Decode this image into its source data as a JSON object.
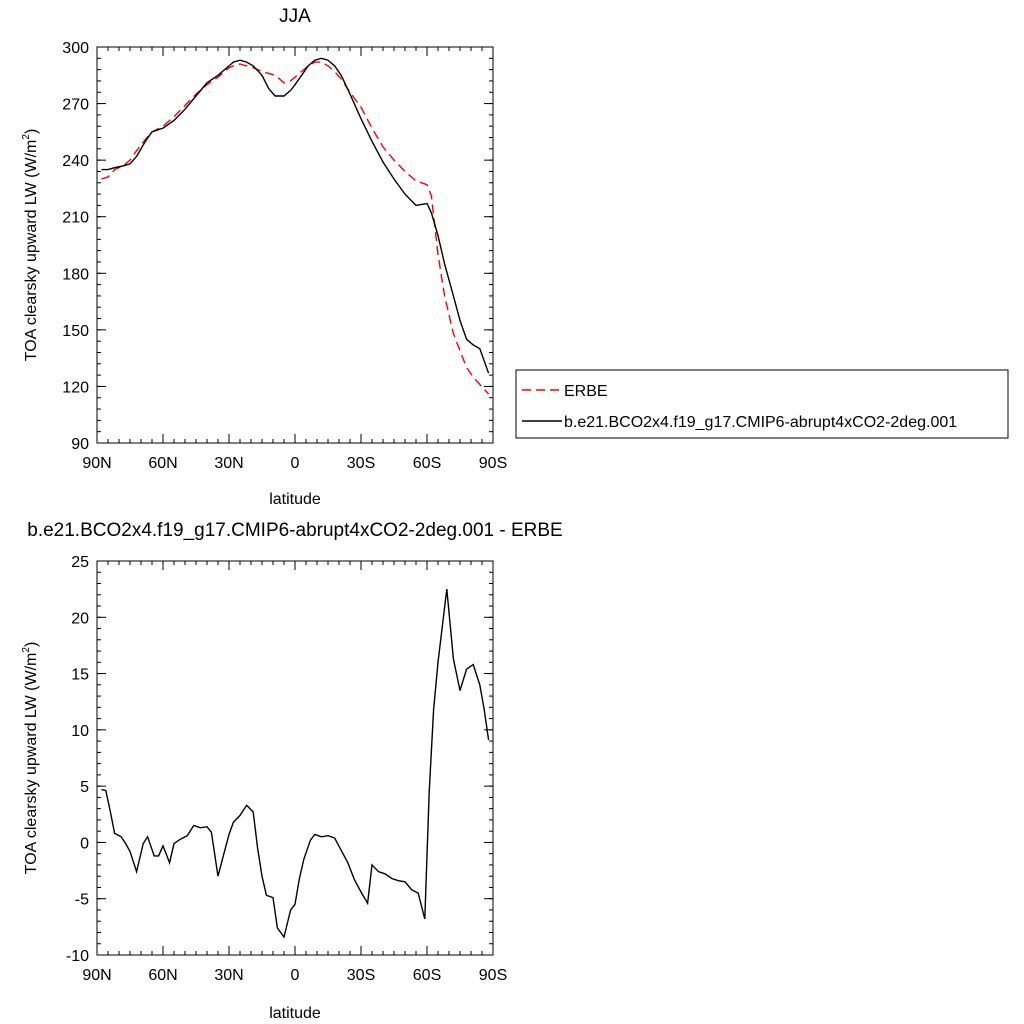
{
  "chart_data": [
    {
      "type": "line",
      "title": "JJA",
      "xlabel": "latitude",
      "ylabel": "TOA clearsky upward LW",
      "ylabel_unit": "(W/m",
      "ylabel_sup": "2",
      "ylabel_close": ")",
      "xlim": [
        90,
        -90
      ],
      "ylim": [
        90,
        300
      ],
      "xticks": [
        90,
        60,
        30,
        0,
        -30,
        -60,
        -90
      ],
      "xtick_labels": [
        "90N",
        "60N",
        "30N",
        "0",
        "30S",
        "60S",
        "90S"
      ],
      "yticks": [
        90,
        120,
        150,
        180,
        210,
        240,
        270,
        300
      ],
      "ytick_labels": [
        "90",
        "120",
        "150",
        "180",
        "210",
        "240",
        "270",
        "300"
      ],
      "legend_position": "right",
      "series": [
        {
          "name": "ERBE",
          "color": "#ff0000",
          "dash": "dashed",
          "x": [
            88,
            85,
            82,
            78,
            75,
            72,
            68,
            65,
            60,
            55,
            50,
            45,
            40,
            35,
            30,
            28,
            25,
            22,
            19,
            15,
            12,
            9,
            5,
            2,
            0,
            -3,
            -6,
            -9,
            -12,
            -15,
            -18,
            -21,
            -25,
            -30,
            -35,
            -40,
            -45,
            -50,
            -55,
            -60,
            -62,
            -65,
            -68,
            -72,
            -75,
            -78,
            -81,
            -84,
            -88
          ],
          "y": [
            230,
            231,
            235,
            237,
            240,
            245,
            251,
            255,
            258,
            263,
            269,
            275,
            280,
            284,
            289,
            290,
            291,
            290,
            289,
            287,
            286,
            285,
            281,
            282,
            284,
            287,
            290,
            292,
            292,
            290,
            287,
            283,
            276,
            268,
            257,
            247,
            240,
            234,
            229,
            227,
            221,
            190,
            168,
            148,
            139,
            130,
            125,
            121,
            116
          ]
        },
        {
          "name": "b.e21.BCO2x4.f19_g17.CMIP6-abrupt4xCO2-2deg.001",
          "color": "#000000",
          "dash": "solid",
          "x": [
            88,
            85,
            82,
            78,
            75,
            72,
            68,
            65,
            60,
            55,
            50,
            45,
            40,
            35,
            30,
            28,
            25,
            22,
            19,
            15,
            12,
            9,
            5,
            2,
            0,
            -3,
            -6,
            -9,
            -12,
            -15,
            -18,
            -21,
            -25,
            -30,
            -35,
            -40,
            -45,
            -50,
            -55,
            -60,
            -62,
            -65,
            -68,
            -72,
            -75,
            -78,
            -81,
            -84,
            -88
          ],
          "y": [
            235,
            235,
            236,
            237,
            238,
            242,
            250,
            255,
            257,
            261,
            267,
            274,
            281,
            285,
            290,
            292,
            293,
            292,
            290,
            285,
            278,
            274,
            274,
            277,
            280,
            285,
            290,
            293,
            294,
            293,
            290,
            285,
            275,
            262,
            250,
            239,
            230,
            222,
            216,
            217,
            212,
            200,
            185,
            168,
            155,
            145,
            142,
            140,
            127
          ]
        }
      ]
    },
    {
      "type": "line",
      "title": "b.e21.BCO2x4.f19_g17.CMIP6-abrupt4xCO2-2deg.001 - ERBE",
      "xlabel": "latitude",
      "ylabel": "TOA clearsky upward LW",
      "ylabel_unit": "(W/m",
      "ylabel_sup": "2",
      "ylabel_close": ")",
      "xlim": [
        90,
        -90
      ],
      "ylim": [
        -10,
        25
      ],
      "xticks": [
        90,
        60,
        30,
        0,
        -30,
        -60,
        -90
      ],
      "xtick_labels": [
        "90N",
        "60N",
        "30N",
        "0",
        "30S",
        "60S",
        "90S"
      ],
      "yticks": [
        -10,
        -5,
        0,
        5,
        10,
        15,
        20,
        25
      ],
      "ytick_labels": [
        "-10",
        "-5",
        "0",
        "5",
        "10",
        "15",
        "20",
        "25"
      ],
      "series": [
        {
          "color": "#000000",
          "dash": "solid",
          "x": [
            88,
            86,
            84,
            82,
            79,
            77,
            75,
            72,
            69,
            67,
            64,
            62,
            60,
            57,
            55,
            52,
            49,
            46,
            43,
            40,
            38,
            35,
            33,
            30,
            28,
            25,
            22,
            19,
            17,
            15,
            13,
            10,
            8,
            5,
            2,
            0,
            -2,
            -4,
            -7,
            -9,
            -12,
            -15,
            -18,
            -21,
            -24,
            -27,
            -30,
            -33,
            -35,
            -38,
            -41,
            -44,
            -47,
            -50,
            -53,
            -56,
            -59,
            -61,
            -63,
            -65,
            -69,
            -72,
            -75,
            -78,
            -81,
            -84,
            -86,
            -88
          ],
          "y": [
            4.7,
            4.6,
            2.8,
            0.8,
            0.5,
            -0.1,
            -0.8,
            -2.6,
            -0.1,
            0.5,
            -1.2,
            -1.2,
            -0.3,
            -1.8,
            -0.1,
            0.3,
            0.6,
            1.5,
            1.3,
            1.4,
            0.9,
            -3,
            -1.5,
            0.7,
            1.8,
            2.4,
            3.3,
            2.7,
            -0.5,
            -3,
            -4.7,
            -4.9,
            -7.6,
            -8.4,
            -6,
            -5.5,
            -3.2,
            -1.5,
            0.2,
            0.7,
            0.5,
            0.6,
            0.4,
            -0.7,
            -1.8,
            -3.3,
            -4.4,
            -5.4,
            -2,
            -2.6,
            -2.8,
            -3.2,
            -3.4,
            -3.5,
            -4.2,
            -4.5,
            -6.8,
            4.5,
            11.8,
            16,
            22.5,
            16.3,
            13.5,
            15.4,
            15.8,
            14,
            11.8,
            9.1
          ]
        }
      ]
    }
  ]
}
